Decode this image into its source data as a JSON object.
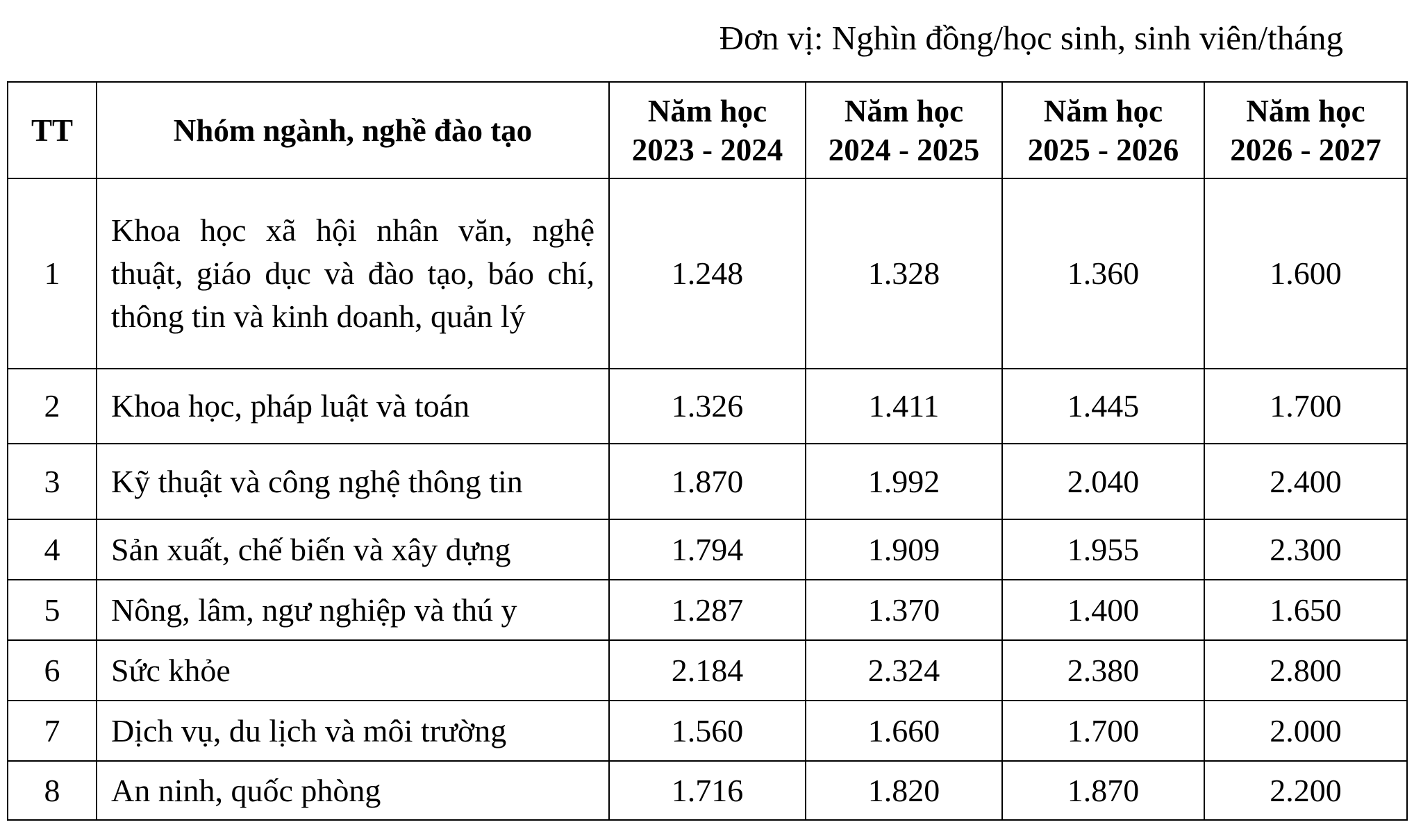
{
  "unit_note": "Đơn vị: Nghìn đồng/học sinh, sinh viên/tháng",
  "headers": {
    "tt": "TT",
    "group": "Nhóm ngành, nghề đào tạo",
    "years": [
      {
        "line1": "Năm học",
        "line2": "2023 - 2024"
      },
      {
        "line1": "Năm học",
        "line2": "2024 - 2025"
      },
      {
        "line1": "Năm học",
        "line2": "2025 - 2026"
      },
      {
        "line1": "Năm học",
        "line2": "2026 - 2027"
      }
    ]
  },
  "rows": [
    {
      "tt": "1",
      "group": "Khoa học xã hội nhân văn, nghệ thuật, giáo dục và đào tạo, báo chí, thông tin và kinh doanh, quản lý",
      "values": [
        "1.248",
        "1.328",
        "1.360",
        "1.600"
      ]
    },
    {
      "tt": "2",
      "group": "Khoa học, pháp luật và toán",
      "values": [
        "1.326",
        "1.411",
        "1.445",
        "1.700"
      ]
    },
    {
      "tt": "3",
      "group": "Kỹ thuật và công nghệ thông tin",
      "values": [
        "1.870",
        "1.992",
        "2.040",
        "2.400"
      ]
    },
    {
      "tt": "4",
      "group": "Sản xuất, chế biến và xây dựng",
      "values": [
        "1.794",
        "1.909",
        "1.955",
        "2.300"
      ]
    },
    {
      "tt": "5",
      "group": "Nông, lâm, ngư nghiệp và thú y",
      "values": [
        "1.287",
        "1.370",
        "1.400",
        "1.650"
      ]
    },
    {
      "tt": "6",
      "group": "Sức khỏe",
      "values": [
        "2.184",
        "2.324",
        "2.380",
        "2.800"
      ]
    },
    {
      "tt": "7",
      "group": "Dịch vụ, du lịch và môi trường",
      "values": [
        "1.560",
        "1.660",
        "1.700",
        "2.000"
      ]
    },
    {
      "tt": "8",
      "group": "An ninh, quốc phòng",
      "values": [
        "1.716",
        "1.820",
        "1.870",
        "2.200"
      ]
    }
  ]
}
